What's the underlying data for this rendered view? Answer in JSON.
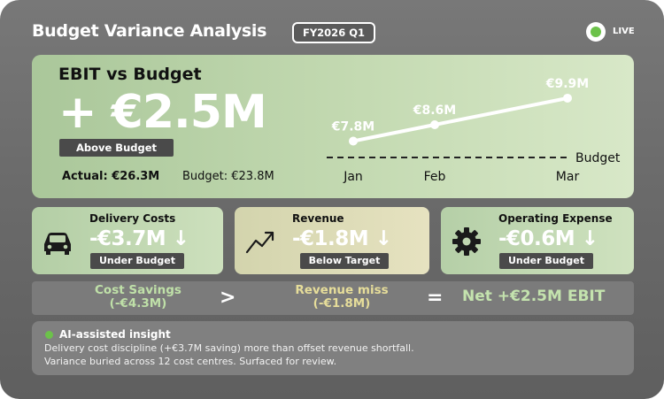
{
  "header": {
    "title": "Budget Variance Analysis",
    "period": "FY2026 Q1",
    "live_label": "LIVE"
  },
  "hero": {
    "label": "EBIT vs Budget",
    "value": "+ €2.5M",
    "status": "Above Budget",
    "actual": "Actual: €26.3M",
    "budget": "Budget: €23.8M",
    "chart_data": {
      "type": "line",
      "categories": [
        "Jan",
        "Feb",
        "Mar"
      ],
      "values": [
        7.8,
        8.6,
        9.9
      ],
      "point_labels": [
        "€7.8M",
        "€8.6M",
        "€9.9M"
      ],
      "reference_line_label": "Budget"
    }
  },
  "kpis": [
    {
      "title": "Delivery Costs",
      "value": "-€3.7M ↓",
      "badge": "Under Budget",
      "icon": "car-icon"
    },
    {
      "title": "Revenue",
      "value": "-€1.8M ↓",
      "badge": "Below Target",
      "icon": "trend-up-icon"
    },
    {
      "title": "Operating Expense",
      "value": "-€0.6M ↓",
      "badge": "Under Budget",
      "icon": "gear-icon"
    }
  ],
  "equation": {
    "savings_label": "Cost Savings",
    "savings_value": "(-€4.3M)",
    "op_greater": ">",
    "miss_label": "Revenue miss",
    "miss_value": "(-€1.8M)",
    "op_equals": "=",
    "net": "Net +€2.5M EBIT"
  },
  "insight": {
    "title": "AI-assisted insight",
    "line1": "Delivery cost discipline (+€3.7M saving) more than offset revenue shortfall.",
    "line2": "Variance buried across 12 cost centres. Surfaced for review."
  },
  "colors": {
    "accent_green": "#6cc24a",
    "savings_text": "#bfe0a8",
    "miss_text": "#e6dd9a"
  }
}
